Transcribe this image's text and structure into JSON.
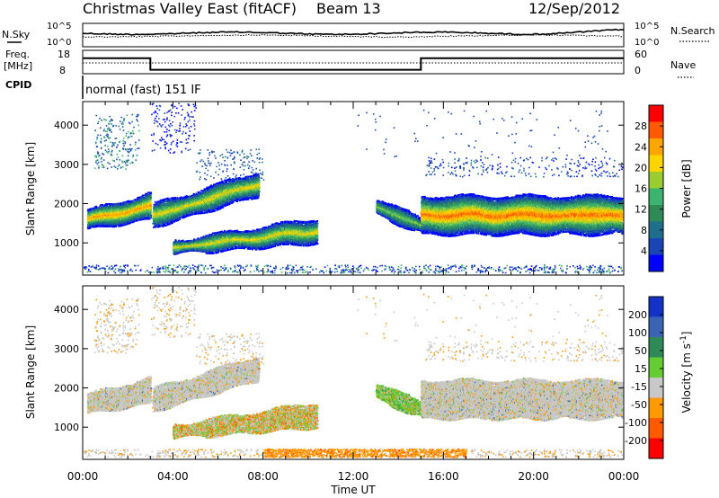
{
  "header": {
    "title": "Christmas Valley East (fitACF)",
    "beam": "Beam 13",
    "date": "12/Sep/2012"
  },
  "status_panels": {
    "nsky_label": "N.Sky",
    "nsearch_label": "N.Search",
    "freq_label_line1": "Freq.",
    "freq_label_line2": "[MHz]",
    "nave_label": "Nave",
    "cpid_label": "CPID",
    "cpid_value": "normal (fast) 151 IF",
    "nsky_ticks": [
      "10^5",
      "10^0"
    ],
    "nsearch_ticks": [
      "10^5",
      "10^0"
    ],
    "freq_ticks": [
      "18",
      "8"
    ],
    "nave_ticks": [
      "60",
      "0"
    ],
    "freq_series": [
      {
        "t": 0,
        "mhz": 14.6
      },
      {
        "t": 3.0,
        "mhz": 14.6
      },
      {
        "t": 3.0,
        "mhz": 9.7
      },
      {
        "t": 15.0,
        "mhz": 9.7
      },
      {
        "t": 15.0,
        "mhz": 14.6
      },
      {
        "t": 24,
        "mhz": 14.6
      }
    ]
  },
  "chart_data": [
    {
      "type": "heatmap",
      "ylabel": "Slant Range [km]",
      "x_ticks": [
        "00:00",
        "04:00",
        "08:00",
        "12:00",
        "16:00",
        "20:00",
        "00:00"
      ],
      "y_ticks": [
        1000,
        2000,
        3000,
        4000
      ],
      "ylim": [
        180,
        4600
      ],
      "xlim_hours": [
        0,
        24
      ],
      "colorbar_label": "Power [dB]",
      "colorbar_ticks": [
        "28",
        "24",
        "20",
        "16",
        "12",
        "8",
        "4"
      ],
      "colorbar_colors": [
        "#ff0000",
        "#ff5a00",
        "#ffa500",
        "#ffd400",
        "#9acd32",
        "#3cb371",
        "#2e8b57",
        "#1e6e8c",
        "#1a45b4",
        "#0000ff"
      ],
      "bands": [
        {
          "t0": 0.2,
          "t1": 3.0,
          "r0": 1600,
          "r1": 2100,
          "peak_db": 26
        },
        {
          "t0": 3.1,
          "t1": 7.8,
          "r0": 1700,
          "r1": 2700,
          "peak_db": 22
        },
        {
          "t0": 4.0,
          "t1": 10.4,
          "r0": 850,
          "r1": 1550,
          "peak_db": 22
        },
        {
          "t0": 13.0,
          "t1": 15.0,
          "r0": 1400,
          "r1": 2000,
          "peak_db": 18
        },
        {
          "t0": 15.0,
          "t1": 24.0,
          "r0": 1400,
          "r1": 2100,
          "peak_db": 28
        }
      ]
    },
    {
      "type": "heatmap",
      "ylabel": "Slant Range [km]",
      "xlabel": "Time UT",
      "x_ticks": [
        "00:00",
        "04:00",
        "08:00",
        "12:00",
        "16:00",
        "20:00",
        "00:00"
      ],
      "y_ticks": [
        1000,
        2000,
        3000,
        4000
      ],
      "ylim": [
        180,
        4600
      ],
      "xlim_hours": [
        0,
        24
      ],
      "colorbar_label": "Velocity [m s^-1]",
      "colorbar_ticks": [
        "200",
        "100",
        "50",
        "15",
        "-15",
        "-50",
        "-100",
        "-200"
      ],
      "colorbar_colors": [
        "#1432c8",
        "#3c64b4",
        "#2e8b57",
        "#66cc33",
        "#c8c8c8",
        "#ff9900",
        "#ff5a00",
        "#ff0000"
      ]
    }
  ]
}
